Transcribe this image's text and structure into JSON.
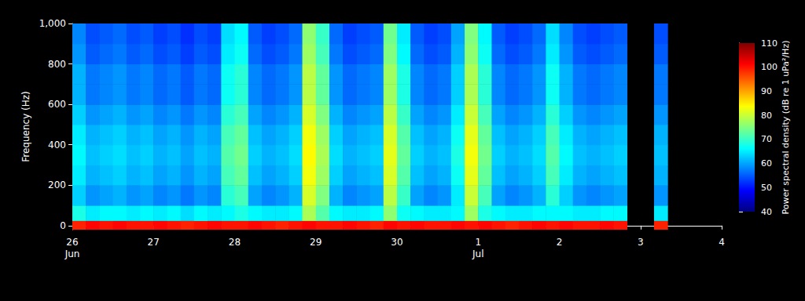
{
  "chart_data": {
    "type": "heatmap",
    "categories": [
      "26\nJun",
      null,
      null,
      null,
      null,
      null,
      "27",
      null,
      null,
      null,
      null,
      null,
      "28",
      null,
      null,
      null,
      null,
      null,
      "29",
      null,
      null,
      null,
      null,
      null,
      "30",
      null,
      null,
      null,
      null,
      null,
      "1\nJul",
      null,
      null,
      null,
      null,
      null,
      "2",
      null,
      null,
      null,
      null,
      null,
      "3",
      null,
      null,
      null,
      null,
      null,
      "4"
    ],
    "y_label": "Frequency (Hz)",
    "ylim": [
      -20,
      1000
    ],
    "yticks": [
      0,
      200,
      400,
      600,
      800,
      1000
    ],
    "frequency_bins": [
      -20,
      25,
      100,
      200,
      300,
      400,
      500,
      600,
      700,
      800,
      900,
      1000
    ],
    "cells": [
      [
        99,
        101,
        100,
        101,
        100,
        100,
        101,
        100,
        99,
        100,
        101,
        100,
        100,
        101,
        100,
        99,
        100,
        101,
        100,
        100,
        101,
        100,
        99,
        101,
        100,
        101,
        100,
        100,
        101,
        100,
        101,
        100,
        99,
        100,
        101,
        100,
        101,
        100,
        100,
        101,
        100,
        null,
        null,
        99,
        null,
        null,
        null,
        null
      ],
      [
        68,
        65,
        66,
        66,
        65,
        66,
        65,
        66,
        64,
        66,
        65,
        66,
        68,
        66,
        65,
        65,
        66,
        78,
        72,
        66,
        65,
        65,
        66,
        76,
        67,
        66,
        65,
        65,
        66,
        77,
        68,
        66,
        65,
        65,
        66,
        66,
        66,
        65,
        65,
        66,
        66,
        null,
        null,
        65,
        null,
        null,
        null,
        null
      ],
      [
        63,
        59,
        60,
        61,
        59,
        60,
        58,
        59,
        57,
        59,
        58,
        69,
        71,
        60,
        58,
        59,
        61,
        81,
        75,
        61,
        58,
        59,
        60,
        79,
        70,
        60,
        58,
        59,
        65,
        80,
        71,
        60,
        58,
        59,
        61,
        69,
        63,
        59,
        58,
        59,
        60,
        null,
        null,
        59,
        null,
        null,
        null,
        null
      ],
      [
        65,
        61,
        62,
        63,
        61,
        62,
        60,
        61,
        59,
        61,
        60,
        71,
        73,
        62,
        60,
        61,
        63,
        83,
        77,
        63,
        60,
        61,
        62,
        81,
        72,
        62,
        60,
        61,
        67,
        82,
        73,
        62,
        60,
        61,
        63,
        71,
        65,
        61,
        60,
        61,
        62,
        null,
        null,
        61,
        null,
        null,
        null,
        null
      ],
      [
        66,
        62,
        63,
        64,
        62,
        63,
        61,
        62,
        60,
        62,
        61,
        72,
        74,
        63,
        61,
        62,
        64,
        84,
        78,
        64,
        61,
        62,
        63,
        82,
        73,
        63,
        61,
        62,
        68,
        83,
        74,
        63,
        61,
        62,
        64,
        72,
        66,
        62,
        61,
        62,
        63,
        null,
        null,
        62,
        null,
        null,
        null,
        null
      ],
      [
        65,
        61,
        62,
        63,
        61,
        62,
        60,
        61,
        59,
        61,
        60,
        71,
        73,
        62,
        60,
        61,
        63,
        83,
        77,
        63,
        60,
        61,
        62,
        81,
        72,
        62,
        60,
        61,
        67,
        82,
        73,
        62,
        60,
        61,
        63,
        71,
        65,
        61,
        60,
        61,
        62,
        null,
        null,
        61,
        null,
        null,
        null,
        null
      ],
      [
        63,
        59,
        60,
        61,
        59,
        60,
        58,
        59,
        57,
        59,
        58,
        69,
        71,
        60,
        58,
        59,
        61,
        81,
        75,
        61,
        58,
        59,
        60,
        79,
        70,
        60,
        58,
        59,
        65,
        80,
        71,
        60,
        58,
        59,
        61,
        69,
        63,
        59,
        58,
        59,
        60,
        null,
        null,
        59,
        null,
        null,
        null,
        null
      ],
      [
        61,
        57,
        58,
        59,
        57,
        58,
        56,
        57,
        55,
        57,
        56,
        67,
        69,
        58,
        56,
        57,
        59,
        79,
        73,
        59,
        56,
        57,
        58,
        77,
        68,
        58,
        56,
        57,
        63,
        78,
        69,
        58,
        56,
        57,
        59,
        67,
        61,
        57,
        56,
        57,
        58,
        null,
        null,
        57,
        null,
        null,
        null,
        null
      ],
      [
        61,
        57,
        58,
        59,
        57,
        58,
        56,
        57,
        55,
        57,
        56,
        67,
        69,
        58,
        56,
        57,
        59,
        79,
        73,
        59,
        56,
        57,
        58,
        77,
        68,
        58,
        56,
        57,
        63,
        78,
        69,
        58,
        56,
        57,
        59,
        67,
        61,
        57,
        56,
        57,
        58,
        null,
        null,
        57,
        null,
        null,
        null,
        null
      ],
      [
        59,
        55,
        56,
        57,
        55,
        56,
        54,
        55,
        53,
        55,
        54,
        65,
        67,
        56,
        54,
        55,
        57,
        77,
        71,
        57,
        54,
        55,
        56,
        75,
        66,
        56,
        54,
        55,
        61,
        76,
        67,
        56,
        54,
        55,
        57,
        65,
        59,
        55,
        54,
        55,
        56,
        null,
        null,
        55,
        null,
        null,
        null,
        null
      ],
      [
        58,
        54,
        55,
        56,
        54,
        55,
        53,
        54,
        52,
        54,
        53,
        64,
        66,
        55,
        53,
        54,
        56,
        76,
        70,
        56,
        53,
        54,
        55,
        74,
        65,
        55,
        53,
        54,
        60,
        75,
        66,
        55,
        53,
        54,
        56,
        64,
        58,
        54,
        53,
        54,
        55,
        null,
        null,
        54,
        null,
        null,
        null,
        null
      ]
    ],
    "colorbar": {
      "label": "Power spectral density (dB re 1 uPa²/Hz)",
      "range": [
        40,
        110
      ],
      "ticks": [
        40,
        50,
        60,
        70,
        80,
        90,
        100,
        110
      ]
    }
  }
}
